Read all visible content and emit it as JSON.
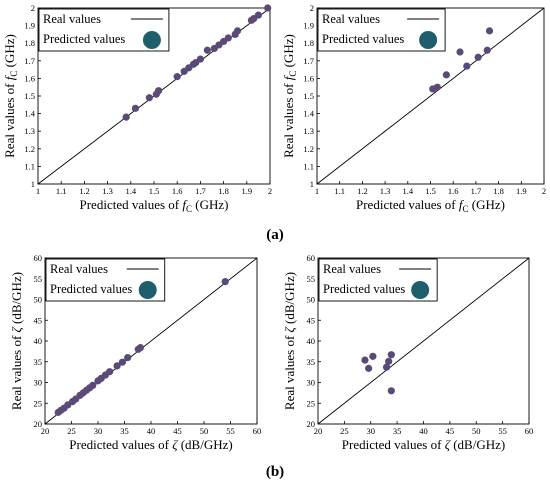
{
  "figure_labels": {
    "a": "(a)",
    "b": "(b)"
  },
  "legend": {
    "line_label": "Real values",
    "marker_label": "Predicted values"
  },
  "colors": {
    "points": "#5b4a78",
    "legend_marker": "#1f5f6b",
    "line": "#000000"
  },
  "chart_data": [
    {
      "type": "scatter",
      "panel": "a-left",
      "xlabel_prefix": "Predicted values of ",
      "xlabel_symbol": "f",
      "xlabel_sub": "C",
      "xlabel_unit": " (GHz)",
      "ylabel_prefix": "Real values of ",
      "ylabel_symbol": "f",
      "ylabel_sub": "C",
      "ylabel_unit": " (GHz)",
      "xlim": [
        1,
        2
      ],
      "ylim": [
        1,
        2
      ],
      "xticks": [
        "1",
        "1.1",
        "1.2",
        "1.3",
        "1.4",
        "1.5",
        "1.6",
        "1.7",
        "1.8",
        "1.9",
        "2"
      ],
      "yticks": [
        "1",
        "1.1",
        "1.2",
        "1.3",
        "1.4",
        "1.5",
        "1.6",
        "1.7",
        "1.8",
        "1.9",
        "2"
      ],
      "reference_line": [
        [
          1,
          1
        ],
        [
          2,
          2
        ]
      ],
      "points": [
        [
          1.38,
          1.38
        ],
        [
          1.42,
          1.43
        ],
        [
          1.48,
          1.49
        ],
        [
          1.51,
          1.51
        ],
        [
          1.52,
          1.53
        ],
        [
          1.6,
          1.61
        ],
        [
          1.63,
          1.64
        ],
        [
          1.65,
          1.66
        ],
        [
          1.67,
          1.68
        ],
        [
          1.68,
          1.69
        ],
        [
          1.7,
          1.71
        ],
        [
          1.73,
          1.76
        ],
        [
          1.76,
          1.77
        ],
        [
          1.78,
          1.79
        ],
        [
          1.8,
          1.81
        ],
        [
          1.82,
          1.83
        ],
        [
          1.85,
          1.85
        ],
        [
          1.86,
          1.87
        ],
        [
          1.92,
          1.93
        ],
        [
          1.93,
          1.94
        ],
        [
          1.95,
          1.96
        ],
        [
          1.99,
          2.0
        ]
      ],
      "legend_position": "top-left"
    },
    {
      "type": "scatter",
      "panel": "a-right",
      "xlabel_prefix": "Predicted values of ",
      "xlabel_symbol": "f",
      "xlabel_sub": "C",
      "xlabel_unit": " (GHz)",
      "ylabel_prefix": "Real values of ",
      "ylabel_symbol": "f",
      "ylabel_sub": "C",
      "ylabel_unit": " (GHz)",
      "xlim": [
        1,
        2
      ],
      "ylim": [
        1,
        2
      ],
      "xticks": [
        "1",
        "1.1",
        "1.2",
        "1.3",
        "1.4",
        "1.5",
        "1.6",
        "1.7",
        "1.8",
        "1.9",
        "2"
      ],
      "yticks": [
        "1",
        "1.1",
        "1.2",
        "1.3",
        "1.4",
        "1.5",
        "1.6",
        "1.7",
        "1.8",
        "1.9",
        "2"
      ],
      "reference_line": [
        [
          1,
          1
        ],
        [
          2,
          2
        ]
      ],
      "points": [
        [
          1.51,
          1.54
        ],
        [
          1.53,
          1.55
        ],
        [
          1.57,
          1.62
        ],
        [
          1.63,
          1.75
        ],
        [
          1.66,
          1.67
        ],
        [
          1.71,
          1.72
        ],
        [
          1.75,
          1.76
        ],
        [
          1.76,
          1.87
        ]
      ],
      "legend_position": "top-left"
    },
    {
      "type": "scatter",
      "panel": "b-left",
      "xlabel_prefix": "Predicted values of ",
      "xlabel_symbol": "ζ",
      "xlabel_sub": "",
      "xlabel_unit": " (dB/GHz)",
      "ylabel_prefix": "Real values of ",
      "ylabel_symbol": "ζ",
      "ylabel_sub": "",
      "ylabel_unit": " (dB/GHz)",
      "xlim": [
        20,
        60
      ],
      "ylim": [
        20,
        60
      ],
      "xticks": [
        "20",
        "25",
        "30",
        "35",
        "40",
        "45",
        "50",
        "55",
        "60"
      ],
      "yticks": [
        "20",
        "25",
        "30",
        "35",
        "40",
        "45",
        "50",
        "55",
        "60"
      ],
      "reference_line": [
        [
          20,
          20
        ],
        [
          60,
          60
        ]
      ],
      "points": [
        [
          22.5,
          22.8
        ],
        [
          23.0,
          23.3
        ],
        [
          23.6,
          23.8
        ],
        [
          24.3,
          24.6
        ],
        [
          25.2,
          25.4
        ],
        [
          25.8,
          26.0
        ],
        [
          26.6,
          26.9
        ],
        [
          27.2,
          27.5
        ],
        [
          27.8,
          28.1
        ],
        [
          28.4,
          28.7
        ],
        [
          29.0,
          29.3
        ],
        [
          30.0,
          30.4
        ],
        [
          30.6,
          31.0
        ],
        [
          31.4,
          31.8
        ],
        [
          32.2,
          32.6
        ],
        [
          33.6,
          34.0
        ],
        [
          34.6,
          34.9
        ],
        [
          35.6,
          36.0
        ],
        [
          37.6,
          38.0
        ],
        [
          38.0,
          38.4
        ],
        [
          54.0,
          54.3
        ]
      ],
      "legend_position": "top-left"
    },
    {
      "type": "scatter",
      "panel": "b-right",
      "xlabel_prefix": "Predicted values of ",
      "xlabel_symbol": "ζ",
      "xlabel_sub": "",
      "xlabel_unit": " (dB/GHz)",
      "ylabel_prefix": "Real values of ",
      "ylabel_symbol": "ζ",
      "ylabel_sub": "",
      "ylabel_unit": " (dB/GHz)",
      "xlim": [
        20,
        60
      ],
      "ylim": [
        20,
        60
      ],
      "xticks": [
        "20",
        "25",
        "30",
        "35",
        "40",
        "45",
        "50",
        "55",
        "60"
      ],
      "yticks": [
        "20",
        "25",
        "30",
        "35",
        "40",
        "45",
        "50",
        "55",
        "60"
      ],
      "reference_line": [
        [
          20,
          20
        ],
        [
          60,
          60
        ]
      ],
      "points": [
        [
          28.9,
          35.4
        ],
        [
          29.6,
          33.4
        ],
        [
          30.4,
          36.3
        ],
        [
          33.0,
          33.7
        ],
        [
          33.4,
          35.1
        ],
        [
          33.9,
          36.7
        ],
        [
          33.9,
          28.0
        ]
      ],
      "legend_position": "top-left"
    }
  ]
}
